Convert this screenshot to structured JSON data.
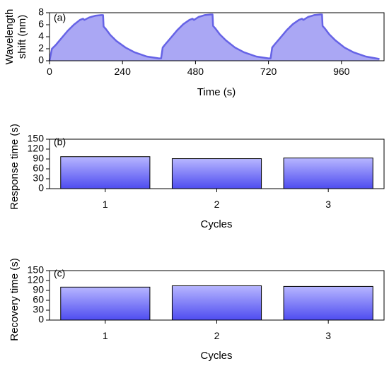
{
  "colors": {
    "fill": "#aaa7f4",
    "line": "#6663e6",
    "bar_top": "#b7b6ff",
    "bar_bottom": "#4e4cf0",
    "axis": "#000000"
  },
  "chart_data": [
    {
      "type": "area",
      "panel_label": "(a)",
      "xlabel": "Time (s)",
      "ylabel_lines": [
        "Wavelength",
        "shift (nm)"
      ],
      "xlim": [
        0,
        1100
      ],
      "ylim": [
        0,
        8
      ],
      "xticks": [
        0,
        240,
        480,
        720,
        960
      ],
      "yticks": [
        0,
        2,
        4,
        6,
        8
      ],
      "grid": false,
      "series": [
        {
          "x": [
            0,
            8,
            20,
            40,
            60,
            80,
            100,
            110,
            115,
            130,
            150,
            170,
            176,
            178,
            185,
            200,
            220,
            250,
            280,
            320,
            360,
            367,
            372,
            380,
            400,
            420,
            440,
            460,
            470,
            475,
            490,
            510,
            530,
            536,
            538,
            545,
            560,
            580,
            610,
            640,
            680,
            720,
            727,
            732,
            740,
            760,
            780,
            800,
            820,
            830,
            835,
            850,
            870,
            890,
            896,
            898,
            905,
            920,
            940,
            970,
            1000,
            1040,
            1085
          ],
          "y": [
            0,
            2.0,
            2.6,
            3.8,
            5.0,
            6.0,
            6.8,
            7.0,
            6.8,
            7.2,
            7.5,
            7.6,
            7.6,
            5.7,
            5.3,
            4.3,
            3.3,
            2.2,
            1.4,
            0.7,
            0.4,
            0.4,
            2.2,
            2.7,
            3.9,
            5.1,
            6.1,
            6.8,
            7.0,
            6.8,
            7.3,
            7.6,
            7.7,
            7.7,
            5.8,
            5.4,
            4.4,
            3.4,
            2.2,
            1.4,
            0.7,
            0.4,
            0.4,
            2.2,
            2.7,
            3.9,
            5.1,
            6.1,
            6.8,
            7.0,
            6.8,
            7.3,
            7.6,
            7.7,
            7.7,
            5.8,
            5.4,
            4.4,
            3.4,
            2.2,
            1.4,
            0.7,
            0.3
          ]
        }
      ]
    },
    {
      "type": "bar",
      "panel_label": "(b)",
      "xlabel": "Cycles",
      "ylabel": "Response time (s)",
      "categories": [
        "1",
        "2",
        "3"
      ],
      "values": [
        97,
        91,
        93
      ],
      "ylim": [
        0,
        150
      ],
      "yticks": [
        0,
        30,
        60,
        90,
        120,
        150
      ],
      "grid": false
    },
    {
      "type": "bar",
      "panel_label": "(c)",
      "xlabel": "Cycles",
      "ylabel": "Recovery time (s)",
      "categories": [
        "1",
        "2",
        "3"
      ],
      "values": [
        100,
        104,
        102
      ],
      "ylim": [
        0,
        150
      ],
      "yticks": [
        0,
        30,
        60,
        90,
        120,
        150
      ],
      "grid": false
    }
  ]
}
